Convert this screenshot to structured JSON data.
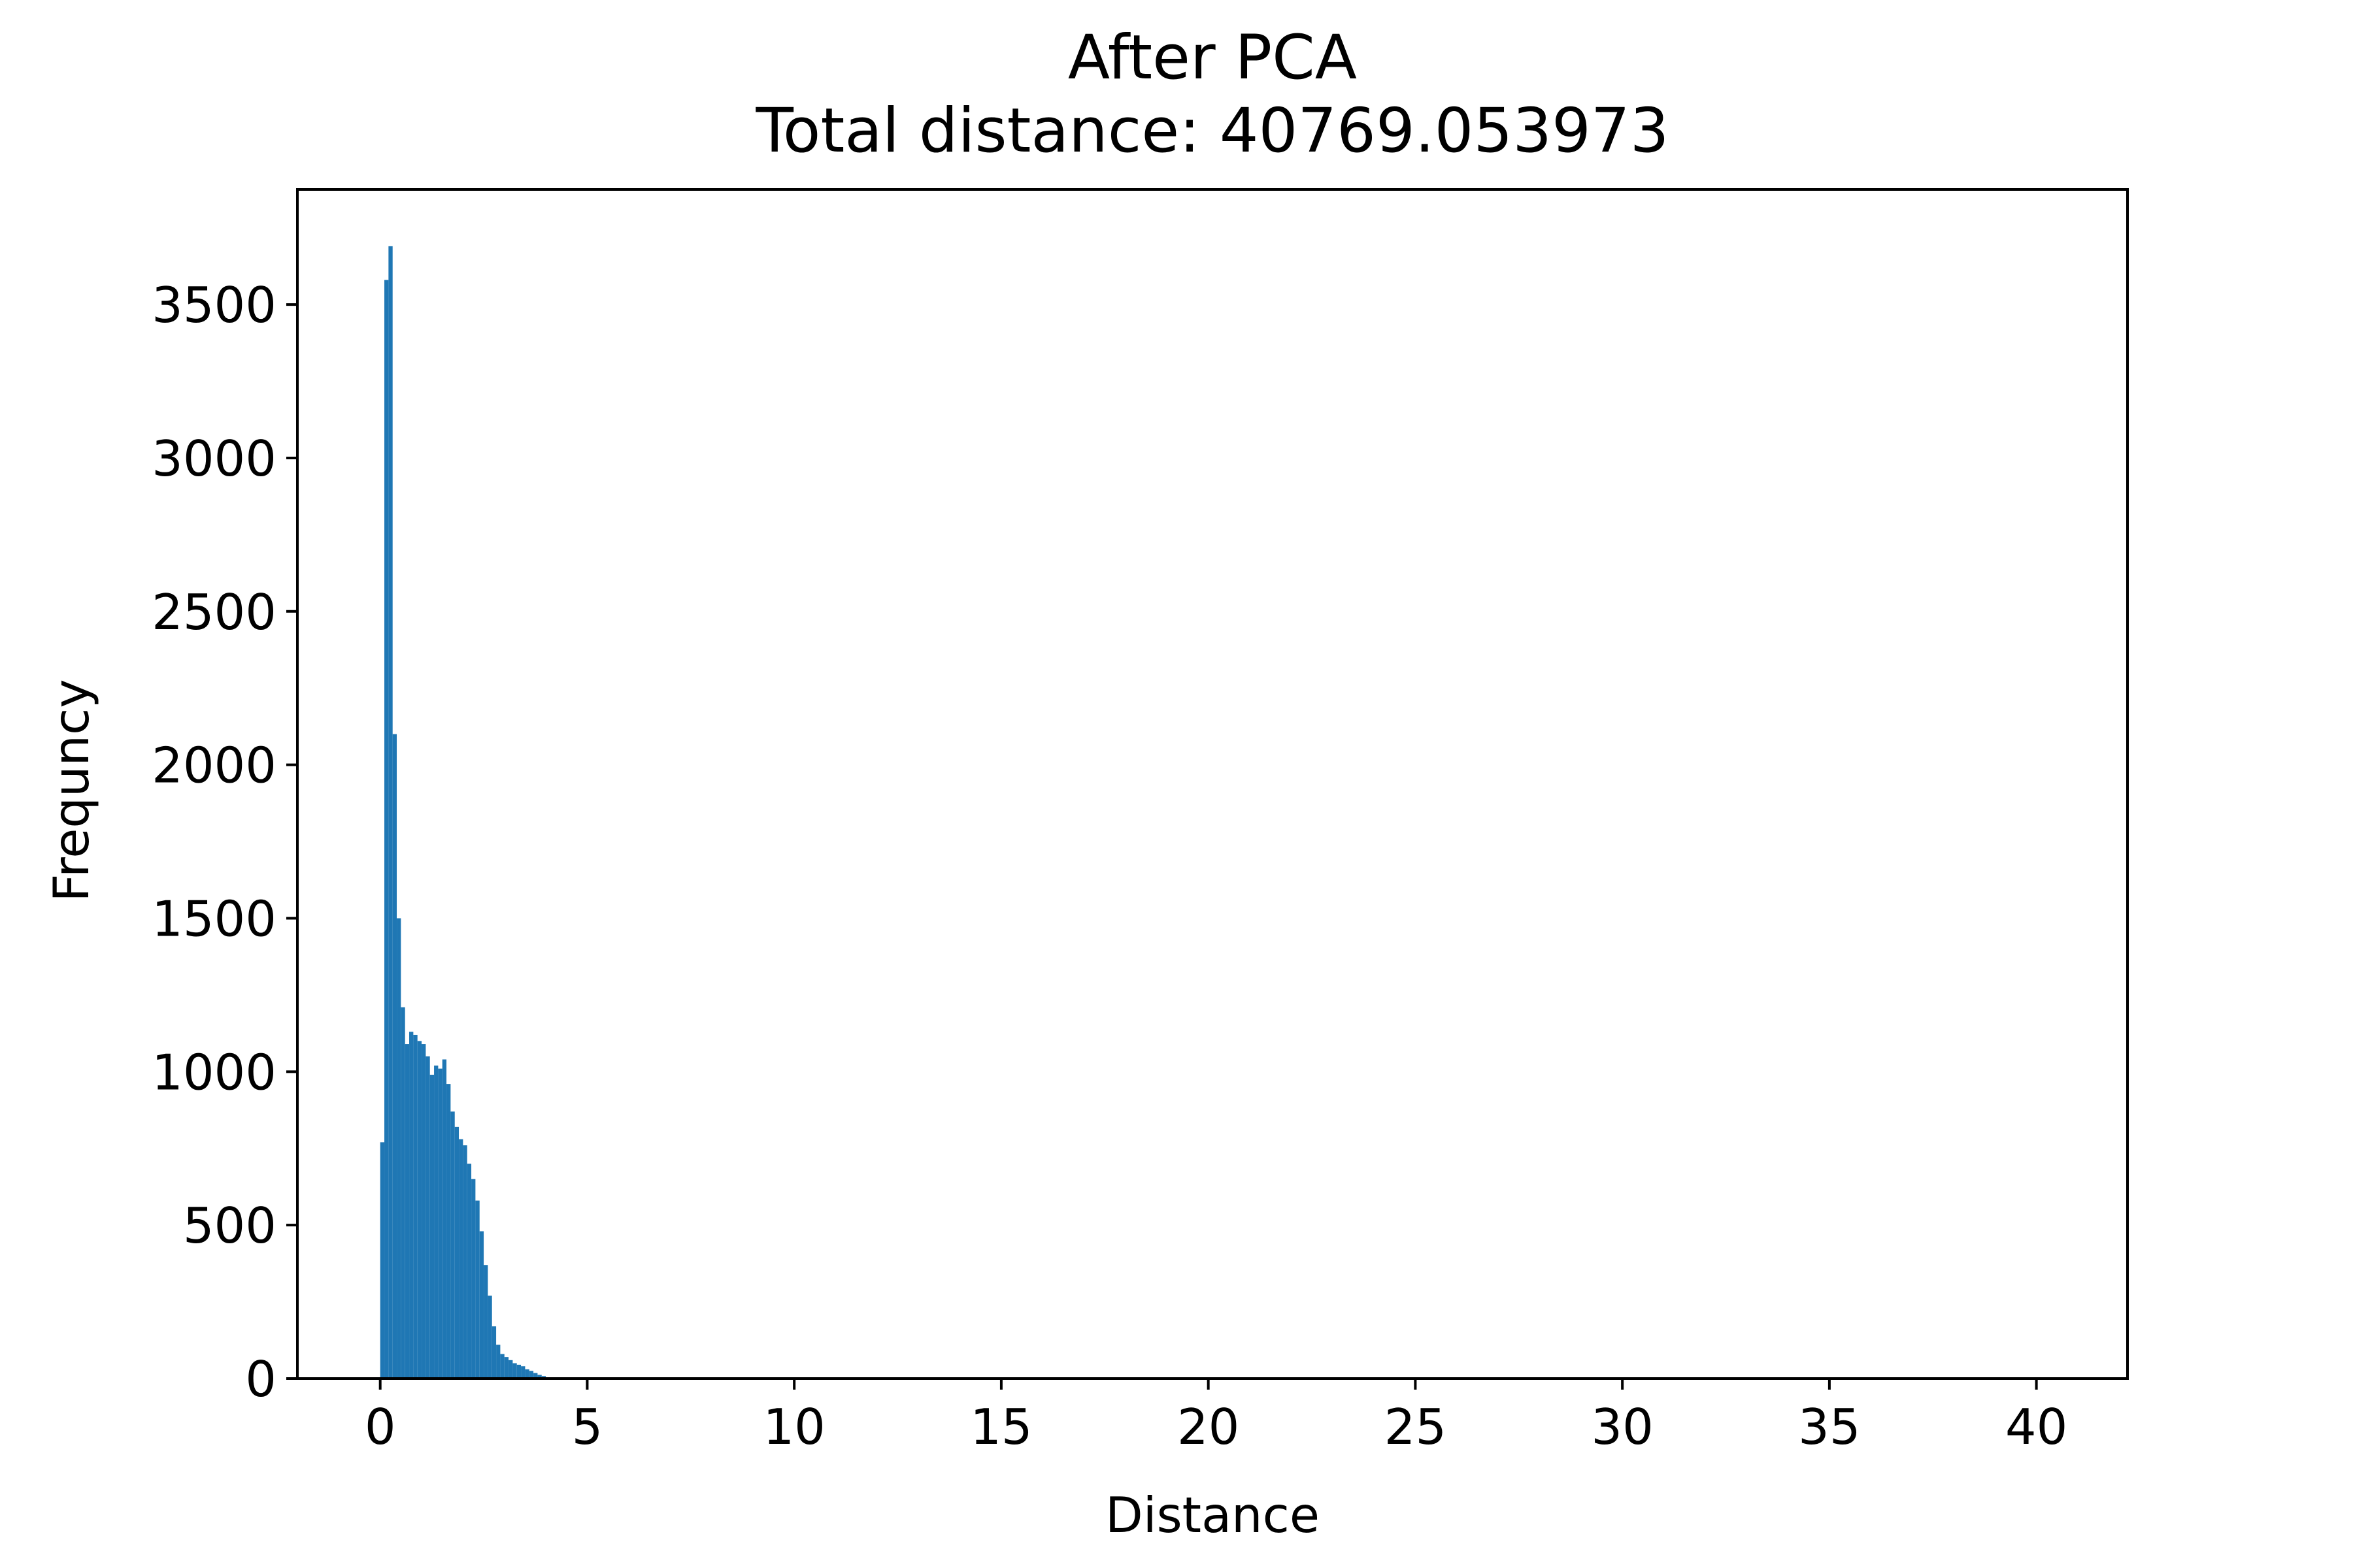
{
  "chart_data": {
    "type": "bar",
    "title": "After PCA",
    "subtitle": "Total distance: 40769.053973",
    "xlabel": "Distance",
    "ylabel": "Frequncy",
    "xlim": [
      -2,
      42.2
    ],
    "ylim": [
      0,
      3875
    ],
    "xticks": [
      0,
      5,
      10,
      15,
      20,
      25,
      30,
      35,
      40
    ],
    "yticks": [
      0,
      500,
      1000,
      1500,
      2000,
      2500,
      3000,
      3500
    ],
    "grid": false,
    "bar_color": "#1f77b4",
    "bin_width": 0.1,
    "bin_starts": [
      0.0,
      0.1,
      0.2,
      0.3,
      0.4,
      0.5,
      0.6,
      0.7,
      0.8,
      0.9,
      1.0,
      1.1,
      1.2,
      1.3,
      1.4,
      1.5,
      1.6,
      1.7,
      1.8,
      1.9,
      2.0,
      2.1,
      2.2,
      2.3,
      2.4,
      2.5,
      2.6,
      2.7,
      2.8,
      2.9,
      3.0,
      3.1,
      3.2,
      3.3,
      3.4,
      3.5,
      3.6,
      3.7,
      3.8,
      3.9
    ],
    "values": [
      770,
      3580,
      3690,
      2100,
      1500,
      1210,
      1090,
      1130,
      1120,
      1100,
      1090,
      1050,
      990,
      1020,
      1010,
      1040,
      960,
      870,
      820,
      780,
      760,
      700,
      650,
      580,
      480,
      370,
      270,
      170,
      110,
      80,
      70,
      60,
      50,
      45,
      40,
      30,
      25,
      18,
      12,
      8
    ]
  }
}
